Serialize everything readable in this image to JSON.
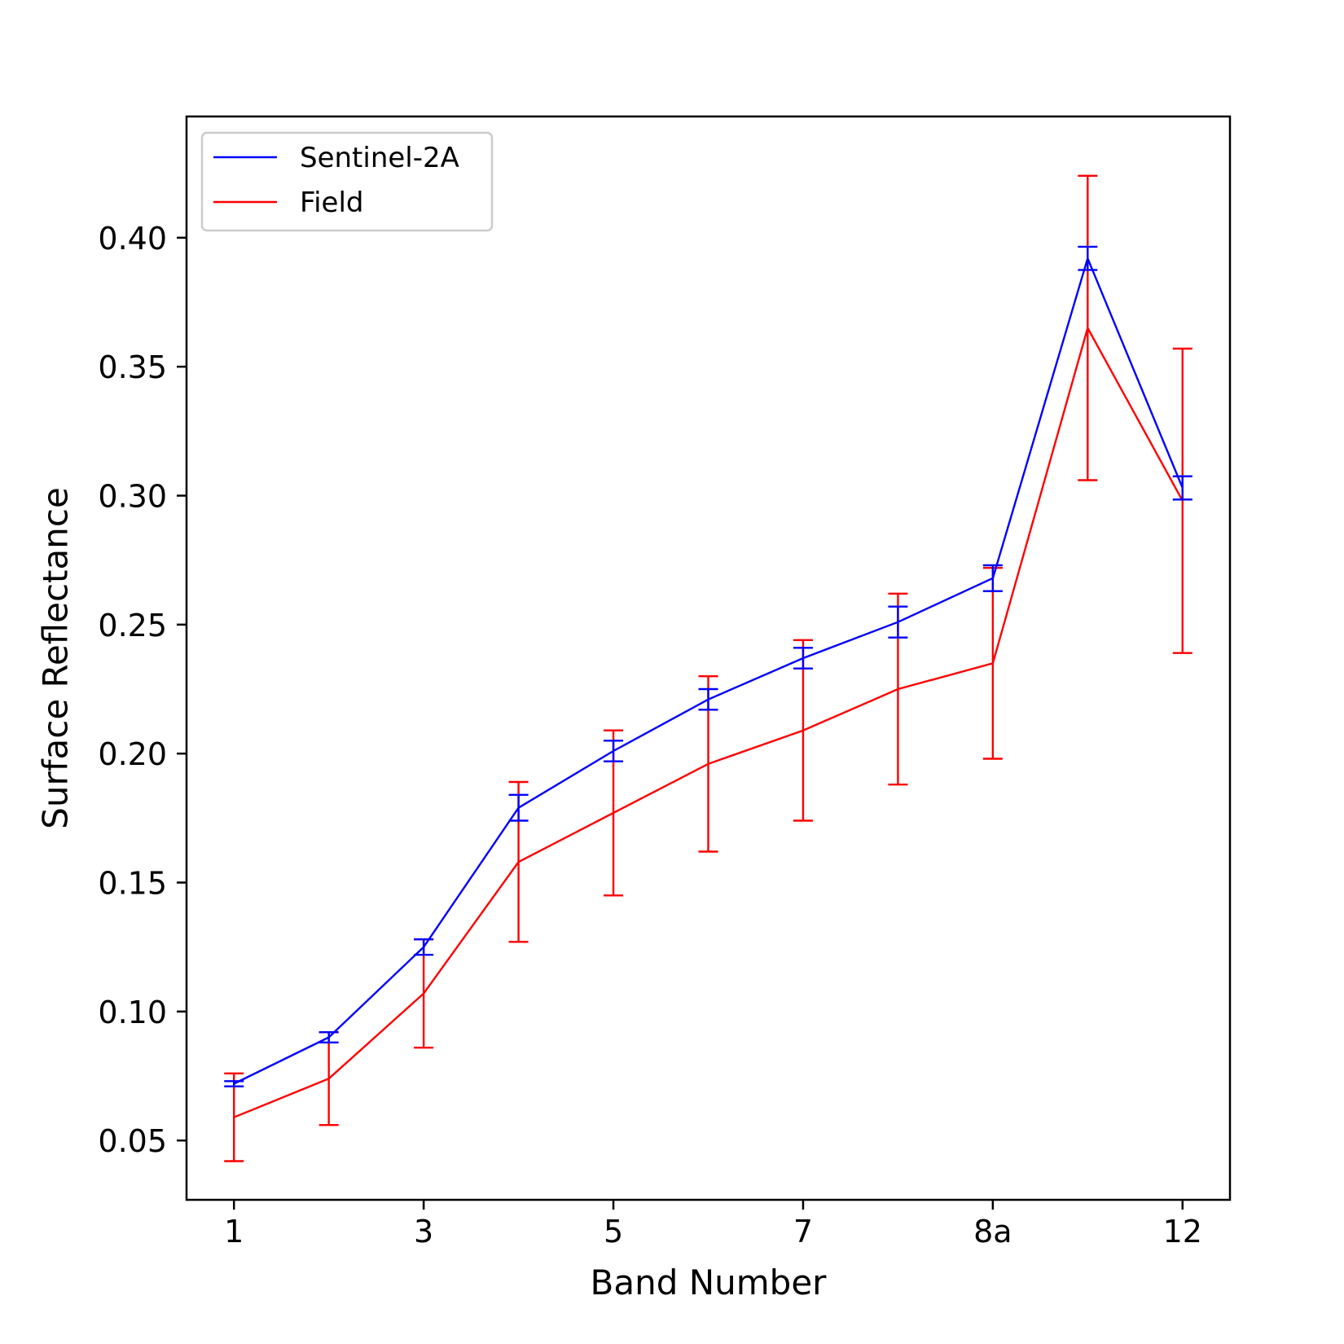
{
  "chart_data": {
    "type": "line",
    "xlabel": "Band Number",
    "ylabel": "Surface Reflectance",
    "x_tick_labels": [
      "1",
      "3",
      "5",
      "7",
      "8a",
      "12"
    ],
    "x_tick_positions": [
      0,
      2,
      4,
      6,
      8,
      10
    ],
    "xlim": [
      -0.5,
      10.5
    ],
    "y_ticks": [
      0.05,
      0.1,
      0.15,
      0.2,
      0.25,
      0.3,
      0.35,
      0.4
    ],
    "y_tick_labels": [
      "0.05",
      "0.10",
      "0.15",
      "0.20",
      "0.25",
      "0.30",
      "0.35",
      "0.40"
    ],
    "ylim": [
      0.027,
      0.447
    ],
    "grid": false,
    "legend_position": "top-left",
    "x": [
      0,
      1,
      2,
      3,
      4,
      5,
      6,
      7,
      8,
      9,
      10
    ],
    "series": [
      {
        "name": "Sentinel-2A",
        "color": "#0000ff",
        "values": [
          0.072,
          0.09,
          0.125,
          0.179,
          0.201,
          0.221,
          0.237,
          0.251,
          0.268,
          0.392,
          0.303
        ],
        "errors": [
          0.001,
          0.002,
          0.003,
          0.005,
          0.004,
          0.004,
          0.004,
          0.006,
          0.005,
          0.0045,
          0.0045
        ]
      },
      {
        "name": "Field",
        "color": "#ff0000",
        "values": [
          0.059,
          0.074,
          0.107,
          0.158,
          0.177,
          0.196,
          0.209,
          0.225,
          0.235,
          0.365,
          0.298
        ],
        "errors": [
          0.017,
          0.018,
          0.021,
          0.031,
          0.032,
          0.034,
          0.035,
          0.037,
          0.037,
          0.059,
          0.059
        ]
      }
    ]
  }
}
